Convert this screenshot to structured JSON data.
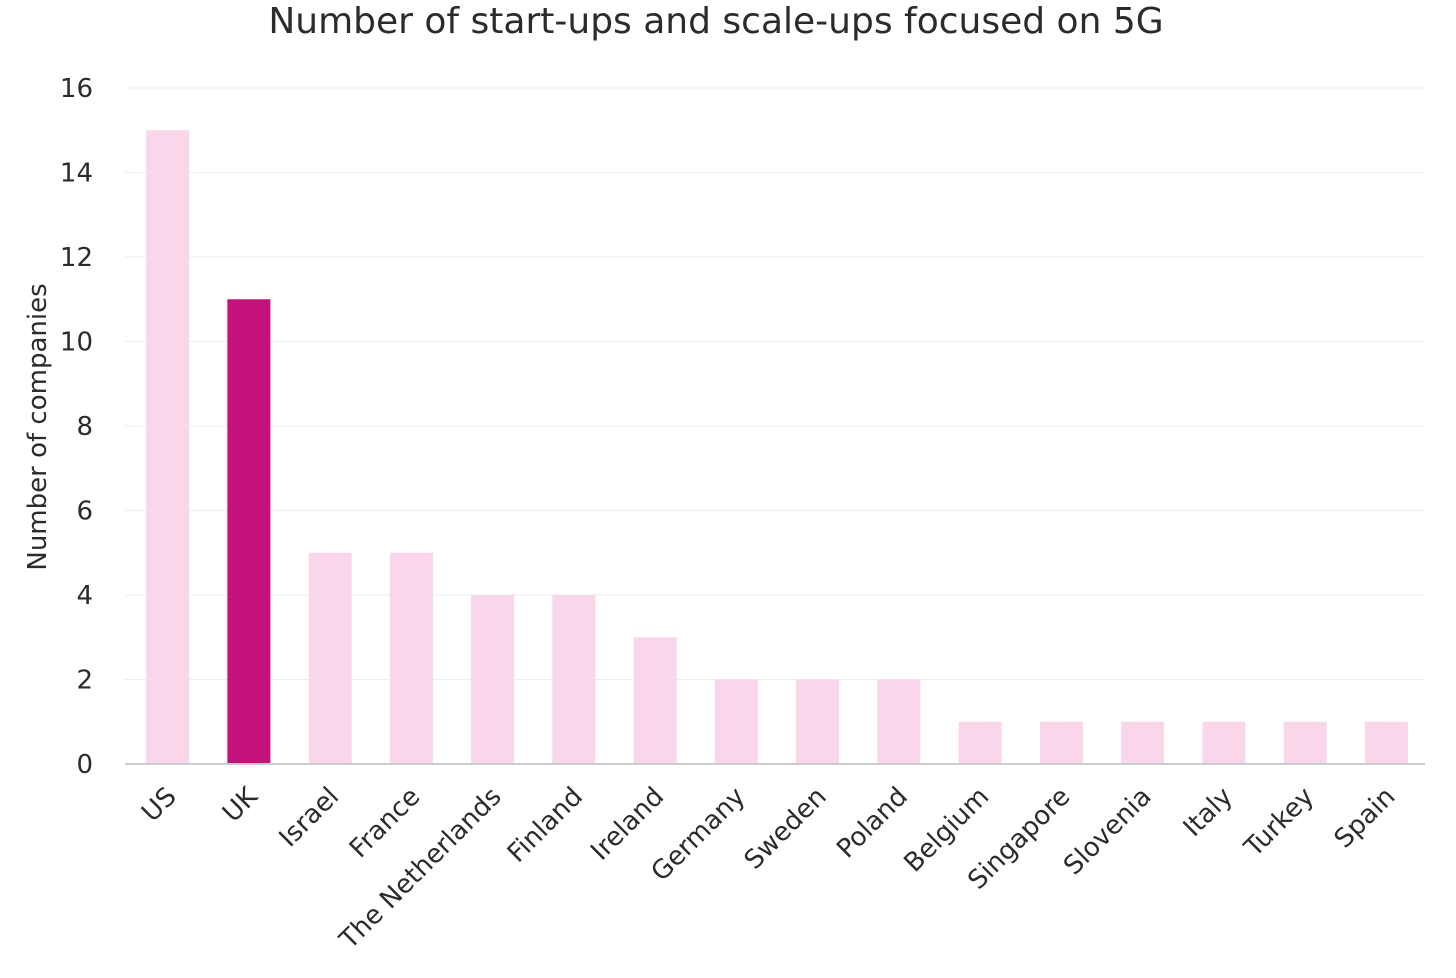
{
  "chart_data": {
    "type": "bar",
    "title": "Number of start-ups and scale-ups focused on 5G",
    "xlabel": "",
    "ylabel": "Number of companies",
    "ylim": [
      0,
      16
    ],
    "yticks": [
      0,
      2,
      4,
      6,
      8,
      10,
      12,
      14,
      16
    ],
    "categories": [
      "US",
      "UK",
      "Israel",
      "France",
      "The Netherlands",
      "Finland",
      "Ireland",
      "Germany",
      "Sweden",
      "Poland",
      "Belgium",
      "Singapore",
      "Slovenia",
      "Italy",
      "Turkey",
      "Spain"
    ],
    "values": [
      15,
      11,
      5,
      5,
      4,
      4,
      3,
      2,
      2,
      2,
      1,
      1,
      1,
      1,
      1,
      1
    ],
    "highlight_category": "UK",
    "grid": true,
    "legend": "none",
    "colors": {
      "bar": "#f9d6ea",
      "highlight": "#c4127a",
      "grid": "#eeeeee",
      "axis": "#cccccc",
      "text": "#2b2b2b"
    }
  }
}
